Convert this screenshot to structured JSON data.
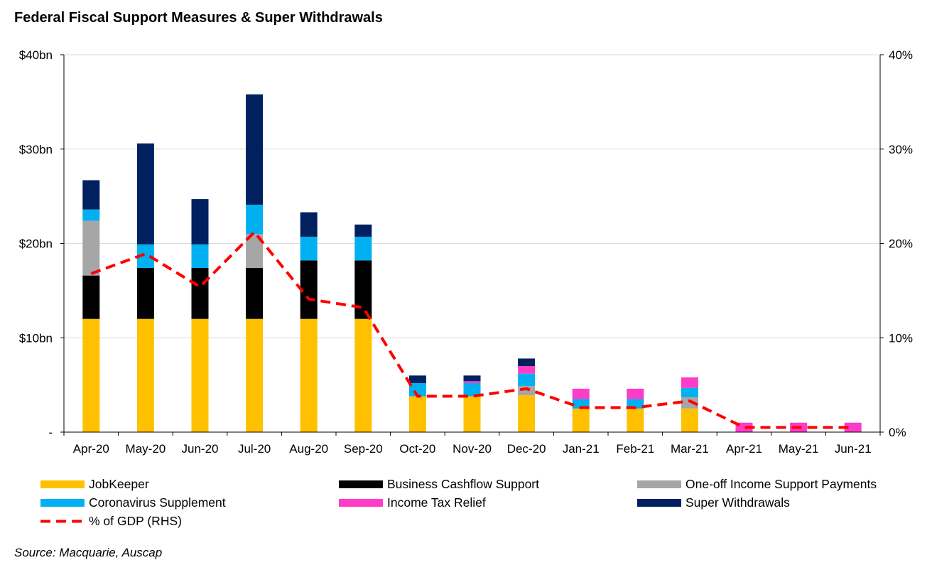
{
  "chart_data": {
    "type": "bar",
    "stacked": true,
    "title": "Federal Fiscal Support Measures & Super Withdrawals",
    "source": "Source: Macquarie, Auscap",
    "categories": [
      "Apr-20",
      "May-20",
      "Jun-20",
      "Jul-20",
      "Aug-20",
      "Sep-20",
      "Oct-20",
      "Nov-20",
      "Dec-20",
      "Jan-21",
      "Feb-21",
      "Mar-21",
      "Apr-21",
      "May-21",
      "Jun-21"
    ],
    "y_left": {
      "min": 0,
      "max": 40,
      "ticks": [
        0,
        10,
        20,
        30,
        40
      ],
      "tick_labels": [
        "-",
        "$10bn",
        "$20bn",
        "$30bn",
        "$40bn"
      ]
    },
    "y_right": {
      "min": 0,
      "max": 40,
      "ticks": [
        0,
        10,
        20,
        30,
        40
      ],
      "tick_labels": [
        "0%",
        "10%",
        "20%",
        "30%",
        "40%"
      ]
    },
    "grid": true,
    "legend_position": "bottom",
    "series": [
      {
        "name": "JobKeeper",
        "color": "#FFC000",
        "values": [
          12,
          12,
          12,
          12,
          12,
          12,
          3.8,
          3.8,
          3.9,
          2.5,
          2.5,
          2.5,
          0,
          0,
          0
        ]
      },
      {
        "name": "Business Cashflow Support",
        "color": "#000000",
        "values": [
          4.6,
          5.4,
          5.4,
          5.4,
          6.2,
          6.2,
          0,
          0,
          0,
          0,
          0,
          0,
          0,
          0,
          0
        ]
      },
      {
        "name": "One-off Income Support Payments",
        "color": "#A6A6A6",
        "values": [
          5.8,
          0,
          0,
          3.6,
          0,
          0,
          0,
          0,
          1.0,
          0,
          0,
          1.2,
          0,
          0,
          0
        ]
      },
      {
        "name": "Coronavirus Supplement",
        "color": "#00B0F0",
        "values": [
          1.2,
          2.5,
          2.5,
          3.1,
          2.5,
          2.5,
          1.4,
          1.4,
          1.3,
          1.0,
          1.0,
          1.0,
          0,
          0,
          0
        ]
      },
      {
        "name": "Income Tax Relief",
        "color": "#FF3CC8",
        "values": [
          0,
          0,
          0,
          0,
          0,
          0,
          0,
          0.2,
          0.8,
          1.1,
          1.1,
          1.1,
          1.0,
          1.0,
          1.0
        ]
      },
      {
        "name": "Super Withdrawals",
        "color": "#002060",
        "values": [
          3.1,
          10.7,
          4.8,
          11.7,
          2.6,
          1.3,
          0.8,
          0.6,
          0.8,
          0,
          0,
          0,
          0,
          0,
          0
        ]
      }
    ],
    "line_series": {
      "name": "% of GDP (RHS)",
      "color": "#FF0000",
      "axis": "right",
      "values": [
        16.8,
        18.9,
        15.4,
        21.2,
        14.1,
        13.2,
        3.8,
        3.8,
        4.6,
        2.6,
        2.6,
        3.3,
        0.5,
        0.5,
        0.5
      ]
    }
  },
  "legend": [
    {
      "label": "JobKeeper",
      "color": "#FFC000",
      "kind": "box"
    },
    {
      "label": "Business Cashflow Support",
      "color": "#000000",
      "kind": "box"
    },
    {
      "label": "One-off Income Support Payments",
      "color": "#A6A6A6",
      "kind": "box"
    },
    {
      "label": "Coronavirus Supplement",
      "color": "#00B0F0",
      "kind": "box"
    },
    {
      "label": "Income Tax Relief",
      "color": "#FF3CC8",
      "kind": "box"
    },
    {
      "label": "Super Withdrawals",
      "color": "#002060",
      "kind": "box"
    },
    {
      "label": "% of GDP (RHS)",
      "color": "#FF0000",
      "kind": "dash"
    }
  ]
}
